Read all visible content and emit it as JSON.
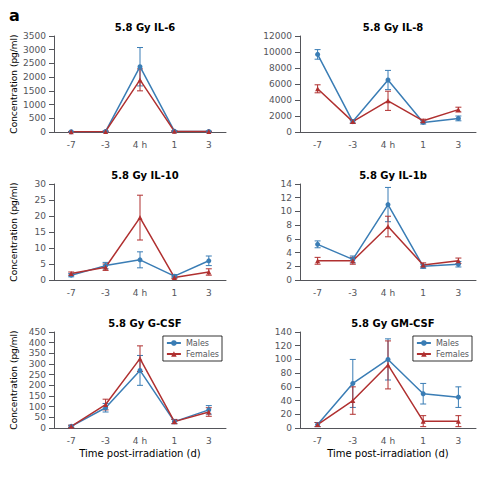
{
  "chart_data": [
    {
      "type": "line",
      "title": "5.8 Gy IL-6",
      "categories": [
        "-7",
        "-3",
        "4 h",
        "1",
        "3"
      ],
      "series": [
        {
          "name": "Males",
          "color": "#3A7DB5",
          "marker": "circle",
          "values": [
            10,
            20,
            2380,
            30,
            20
          ],
          "errors": [
            10,
            15,
            700,
            20,
            15
          ]
        },
        {
          "name": "Females",
          "color": "#B03030",
          "marker": "triangle",
          "values": [
            10,
            20,
            1900,
            25,
            15
          ],
          "errors": [
            10,
            15,
            400,
            15,
            10
          ]
        }
      ],
      "ylim": [
        0,
        3500
      ],
      "yticks": [
        0,
        500,
        1000,
        1500,
        2000,
        2500,
        3000,
        3500
      ],
      "ylabel": "Concentration (pg/ml)",
      "grid": false
    },
    {
      "type": "line",
      "title": "5.8 Gy IL-8",
      "categories": [
        "-7",
        "-3",
        "4 h",
        "1",
        "3"
      ],
      "series": [
        {
          "name": "Males",
          "color": "#3A7DB5",
          "marker": "circle",
          "values": [
            9700,
            1300,
            6500,
            1200,
            1700
          ],
          "errors": [
            600,
            200,
            1200,
            200,
            300
          ]
        },
        {
          "name": "Females",
          "color": "#B03030",
          "marker": "triangle",
          "values": [
            5400,
            1300,
            3900,
            1400,
            2800
          ],
          "errors": [
            500,
            200,
            1200,
            200,
            300
          ]
        }
      ],
      "ylim": [
        0,
        12000
      ],
      "yticks": [
        0,
        2000,
        4000,
        6000,
        8000,
        10000,
        12000
      ],
      "grid": false
    },
    {
      "type": "line",
      "title": "5.8 Gy IL-10",
      "categories": [
        "-7",
        "-3",
        "4 h",
        "1",
        "3"
      ],
      "series": [
        {
          "name": "Males",
          "color": "#3A7DB5",
          "marker": "circle",
          "values": [
            1.5,
            4.5,
            6.3,
            1.2,
            6.0
          ],
          "errors": [
            0.5,
            1.0,
            2.5,
            0.5,
            1.5
          ]
        },
        {
          "name": "Females",
          "color": "#B03030",
          "marker": "triangle",
          "values": [
            2.0,
            4.0,
            19.5,
            0.8,
            2.5
          ],
          "errors": [
            0.5,
            1.0,
            7.0,
            0.4,
            1.0
          ]
        }
      ],
      "ylim": [
        0,
        30
      ],
      "yticks": [
        0,
        5,
        10,
        15,
        20,
        25,
        30
      ],
      "ylabel": "Concentration (pg/ml)",
      "grid": false
    },
    {
      "type": "line",
      "title": "5.8 Gy IL-1b",
      "categories": [
        "-7",
        "-3",
        "4 h",
        "1",
        "3"
      ],
      "series": [
        {
          "name": "Males",
          "color": "#3A7DB5",
          "marker": "circle",
          "values": [
            5.2,
            3.0,
            11.0,
            2.0,
            2.3
          ],
          "errors": [
            0.5,
            0.5,
            2.5,
            0.3,
            0.4
          ]
        },
        {
          "name": "Females",
          "color": "#B03030",
          "marker": "triangle",
          "values": [
            2.8,
            2.8,
            7.8,
            2.2,
            2.8
          ],
          "errors": [
            0.5,
            0.5,
            1.5,
            0.3,
            0.4
          ]
        }
      ],
      "ylim": [
        0,
        14
      ],
      "yticks": [
        0,
        2,
        4,
        6,
        8,
        10,
        12,
        14
      ],
      "grid": false
    },
    {
      "type": "line",
      "title": "5.8 Gy G-CSF",
      "categories": [
        "-7",
        "-3",
        "4 h",
        "1",
        "3"
      ],
      "series": [
        {
          "name": "Males",
          "color": "#3A7DB5",
          "marker": "circle",
          "values": [
            8,
            95,
            270,
            30,
            85
          ],
          "errors": [
            5,
            20,
            70,
            10,
            20
          ]
        },
        {
          "name": "Females",
          "color": "#B03030",
          "marker": "triangle",
          "values": [
            8,
            110,
            325,
            30,
            75
          ],
          "errors": [
            5,
            25,
            60,
            10,
            20
          ]
        }
      ],
      "ylim": [
        0,
        450
      ],
      "yticks": [
        0,
        50,
        100,
        150,
        200,
        250,
        300,
        350,
        400,
        450
      ],
      "ylabel": "Concentration (pg/ml)",
      "xlabel": "Time post-irradiation (d)",
      "legend": "upper right",
      "grid": false
    },
    {
      "type": "line",
      "title": "5.8 Gy GM-CSF",
      "categories": [
        "-7",
        "-3",
        "4 h",
        "1",
        "3"
      ],
      "series": [
        {
          "name": "Males",
          "color": "#3A7DB5",
          "marker": "circle",
          "values": [
            5,
            65,
            100,
            50,
            45
          ],
          "errors": [
            3,
            35,
            30,
            15,
            15
          ]
        },
        {
          "name": "Females",
          "color": "#B03030",
          "marker": "triangle",
          "values": [
            5,
            40,
            92,
            10,
            10
          ],
          "errors": [
            3,
            20,
            35,
            8,
            8
          ]
        }
      ],
      "ylim": [
        0,
        140
      ],
      "yticks": [
        0,
        20,
        40,
        60,
        80,
        100,
        120,
        140
      ],
      "xlabel": "Time post-irradiation (d)",
      "legend": "upper right",
      "grid": false
    }
  ],
  "annotations": [
    "a"
  ]
}
